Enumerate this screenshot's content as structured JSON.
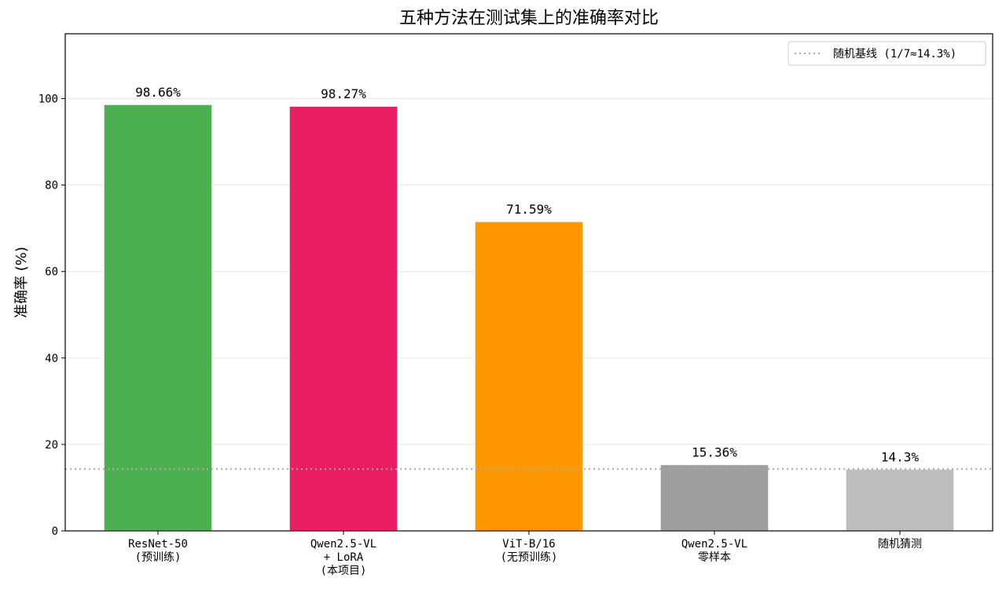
{
  "chart_data": {
    "type": "bar",
    "title": "五种方法在测试集上的准确率对比",
    "xlabel": "",
    "ylabel": "准确率 (%)",
    "ylim": [
      0,
      115
    ],
    "yticks": [
      0,
      20,
      40,
      60,
      80,
      100
    ],
    "grid": "y",
    "categories": [
      [
        "ResNet-50",
        "(预训练)"
      ],
      [
        "Qwen2.5-VL",
        "+ LoRA",
        "(本项目)"
      ],
      [
        "ViT-B/16",
        "(无预训练)"
      ],
      [
        "Qwen2.5-VL",
        "零样本"
      ],
      [
        "随机猜测"
      ]
    ],
    "values": [
      98.66,
      98.27,
      71.59,
      15.36,
      14.3
    ],
    "data_labels": [
      "98.66%",
      "98.27%",
      "71.59%",
      "15.36%",
      "14.3%"
    ],
    "colors": [
      "#4caf50",
      "#e91e63",
      "#ff9800",
      "#9e9e9e",
      "#bdbdbd"
    ],
    "reference_line": {
      "value": 14.3,
      "label": "随机基线 (1/7≈14.3%)",
      "color": "#aaaaaa",
      "style": "dotted"
    },
    "legend_position": "top-right"
  }
}
